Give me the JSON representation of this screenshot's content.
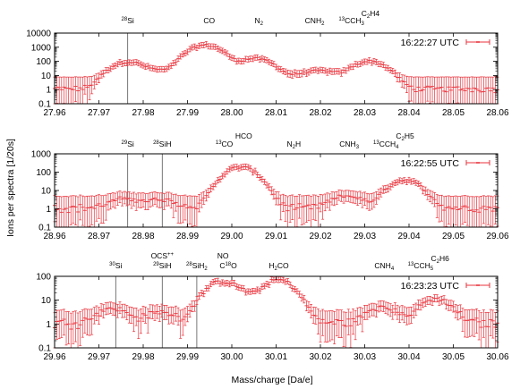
{
  "figure": {
    "xlabel": "Mass/charge [Da/e]",
    "ylabel": "Ions per spectra [1/20s]",
    "series_color": "#e8333c",
    "marker_color": "#e8333c"
  },
  "chart_data": [
    {
      "type": "scatter",
      "legend": "16:22:27 UTC",
      "legend_position": "top-right",
      "y_scale": "log",
      "xlim": [
        27.96,
        28.06
      ],
      "ylim": [
        0.1,
        10000
      ],
      "xticks": [
        "27.96",
        "27.97",
        "27.98",
        "27.99",
        "28.00",
        "28.01",
        "28.02",
        "28.03",
        "28.04",
        "28.05",
        "28.06"
      ],
      "yticks": [
        "0.1",
        "1",
        "10",
        "100",
        "1000",
        "10000"
      ],
      "peaks": [
        {
          "x": 27.9765,
          "y": 90
        },
        {
          "x": 27.9835,
          "y": 20
        },
        {
          "x": 27.994,
          "y": 1400
        },
        {
          "x": 28.004,
          "y": 70
        },
        {
          "x": 28.006,
          "y": 100
        },
        {
          "x": 28.014,
          "y": 6
        },
        {
          "x": 28.0185,
          "y": 12
        },
        {
          "x": 28.022,
          "y": 12
        },
        {
          "x": 28.031,
          "y": 100
        }
      ],
      "annotations": [
        {
          "x": 27.9765,
          "pre": "28",
          "main": "Si",
          "sub": "",
          "tail": "",
          "line": true
        },
        {
          "x": 27.9949,
          "pre": "",
          "main": "CO",
          "sub": "",
          "tail": "",
          "line": false
        },
        {
          "x": 28.0061,
          "pre": "",
          "main": "N",
          "sub": "2",
          "tail": "",
          "line": false
        },
        {
          "x": 28.0187,
          "pre": "",
          "main": "CNH",
          "sub": "2",
          "tail": "",
          "line": false
        },
        {
          "x": 28.027,
          "pre": "13",
          "main": "CCH",
          "sub": "3",
          "tail": "",
          "line": false
        },
        {
          "x": 28.0313,
          "pre": "",
          "main": "C",
          "sub": "2",
          "tail": "H4",
          "line": false
        }
      ]
    },
    {
      "type": "scatter",
      "legend": "16:22:55 UTC",
      "legend_position": "top-right",
      "y_scale": "log",
      "xlim": [
        28.96,
        29.06
      ],
      "ylim": [
        0.1,
        1000
      ],
      "xticks": [
        "28.96",
        "28.97",
        "28.98",
        "28.99",
        "29.00",
        "29.01",
        "29.02",
        "29.03",
        "29.04",
        "29.05",
        "29.06"
      ],
      "yticks": [
        "0.1",
        "1",
        "10",
        "100",
        "1000"
      ],
      "peaks": [
        {
          "x": 28.976,
          "y": 2.5
        },
        {
          "x": 28.984,
          "y": 2.0
        },
        {
          "x": 29.002,
          "y": 190
        },
        {
          "x": 29.026,
          "y": 4
        },
        {
          "x": 29.039,
          "y": 35
        }
      ],
      "annotations": [
        {
          "x": 28.9765,
          "pre": "29",
          "main": "Si",
          "sub": "",
          "tail": "",
          "line": true
        },
        {
          "x": 28.9843,
          "pre": "28",
          "main": "SiH",
          "sub": "",
          "tail": "",
          "line": true
        },
        {
          "x": 28.9983,
          "pre": "13",
          "main": "CO",
          "sub": "",
          "tail": "",
          "line": false
        },
        {
          "x": 29.0027,
          "pre": "",
          "main": "HCO",
          "sub": "",
          "tail": "",
          "line": false
        },
        {
          "x": 29.014,
          "pre": "",
          "main": "N",
          "sub": "2",
          "tail": "H",
          "line": false
        },
        {
          "x": 29.0265,
          "pre": "",
          "main": "CNH",
          "sub": "3",
          "tail": "",
          "line": false
        },
        {
          "x": 29.0348,
          "pre": "13",
          "main": "CCH",
          "sub": "4",
          "tail": "",
          "line": false
        },
        {
          "x": 29.0391,
          "pre": "",
          "main": "C",
          "sub": "2",
          "tail": "H5",
          "line": false
        }
      ]
    },
    {
      "type": "scatter",
      "legend": "16:23:23 UTC",
      "legend_position": "top-right",
      "y_scale": "log",
      "xlim": [
        29.96,
        30.06
      ],
      "ylim": [
        0.1,
        100
      ],
      "xticks": [
        "29.96",
        "29.97",
        "29.98",
        "29.99",
        "30.00",
        "30.01",
        "30.02",
        "30.03",
        "30.04",
        "30.05",
        "30.06"
      ],
      "yticks": [
        "0.1",
        "1",
        "10",
        "100"
      ],
      "peaks": [
        {
          "x": 29.973,
          "y": 3.5
        },
        {
          "x": 29.984,
          "y": 2.0
        },
        {
          "x": 29.9975,
          "y": 55
        },
        {
          "x": 30.002,
          "y": 15
        },
        {
          "x": 30.0105,
          "y": 70
        },
        {
          "x": 30.034,
          "y": 4
        },
        {
          "x": 30.046,
          "y": 10
        }
      ],
      "annotations": [
        {
          "x": 29.9738,
          "pre": "30",
          "main": "Si",
          "sub": "",
          "tail": "",
          "line": true
        },
        {
          "x": 29.9843,
          "pre": "",
          "main": "OCS",
          "sub": "",
          "tail": "++",
          "line": true
        },
        {
          "x": 29.9843,
          "pre": "29",
          "main": "SiH",
          "sub": "",
          "tail": "",
          "line": false
        },
        {
          "x": 29.9921,
          "pre": "28",
          "main": "SiH",
          "sub": "2",
          "tail": "",
          "line": true
        },
        {
          "x": 29.998,
          "pre": "",
          "main": "NO",
          "sub": "",
          "tail": "",
          "line": false
        },
        {
          "x": 29.9992,
          "pre": "",
          "main": "C",
          "sub": "",
          "tail": "18O",
          "line": false
        },
        {
          "x": 30.0106,
          "pre": "",
          "main": "H",
          "sub": "2",
          "tail": "CO",
          "line": false
        },
        {
          "x": 30.0344,
          "pre": "",
          "main": "CNH",
          "sub": "4",
          "tail": "",
          "line": false
        },
        {
          "x": 30.0426,
          "pre": "13",
          "main": "CCH",
          "sub": "5",
          "tail": "",
          "line": false
        },
        {
          "x": 30.047,
          "pre": "",
          "main": "C",
          "sub": "2",
          "tail": "H6",
          "line": false
        }
      ]
    }
  ]
}
